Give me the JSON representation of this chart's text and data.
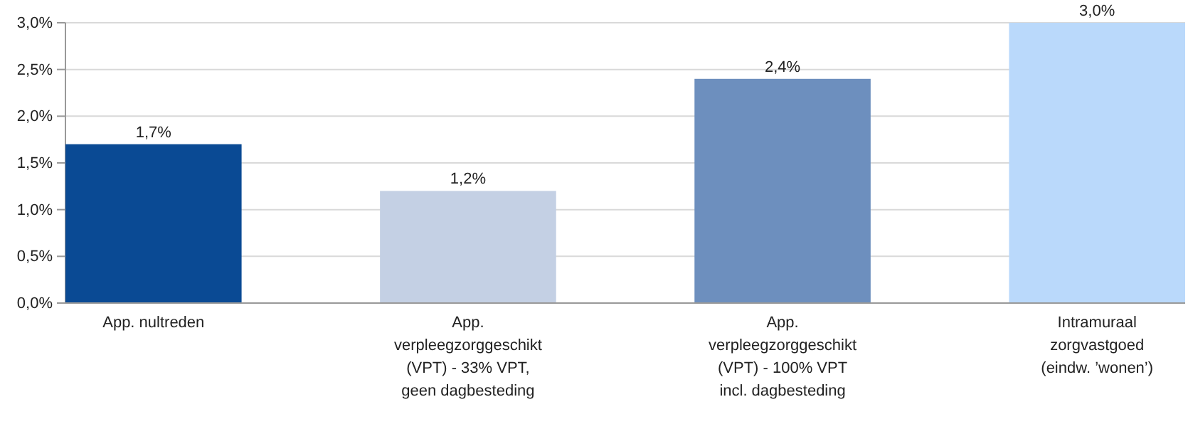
{
  "chart_data": {
    "type": "bar",
    "categories": [
      "App. nultreden",
      "App.\nverpleegzorggeschikt\n(VPT) - 33% VPT,\ngeen dagbesteding",
      "App.\nverpleegzorggeschikt\n(VPT) - 100% VPT\nincl. dagbesteding",
      "Intramuraal\nzorgvastgoed\n(eindw. ’wonen’)"
    ],
    "values": [
      1.7,
      1.2,
      2.4,
      3.0
    ],
    "colors": [
      "#0a4a94",
      "#c4d0e4",
      "#6d8fbe",
      "#bad9fb"
    ],
    "value_labels": [
      "1,7%",
      "1,2%",
      "2,4%",
      "3,0%"
    ],
    "ylim": [
      0,
      3
    ],
    "yticks": [
      {
        "value": 0,
        "label": "0,0%"
      },
      {
        "value": 0.5,
        "label": "0,5%"
      },
      {
        "value": 1,
        "label": "1,0%"
      },
      {
        "value": 1.5,
        "label": "1,5%"
      },
      {
        "value": 2,
        "label": "2,0%"
      },
      {
        "value": 2.5,
        "label": "2,5%"
      },
      {
        "value": 3,
        "label": "3,0%"
      }
    ],
    "grid": "y"
  }
}
